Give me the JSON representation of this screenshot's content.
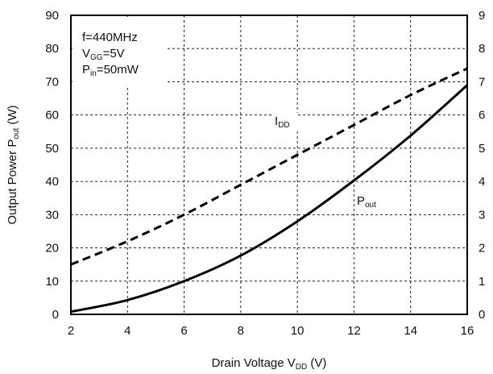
{
  "chart_data": {
    "type": "line",
    "x_axis": {
      "label_main": "Drain Voltage V",
      "label_sub": "DD",
      "label_unit": " (V)",
      "range": [
        2,
        16
      ],
      "ticks": [
        "2",
        "4",
        "6",
        "8",
        "10",
        "12",
        "14",
        "16"
      ]
    },
    "y_axis_left": {
      "label_main": "Output Power P",
      "label_sub": "out",
      "label_unit": " (W)",
      "range": [
        0,
        90
      ],
      "ticks": [
        "0",
        "10",
        "20",
        "30",
        "40",
        "50",
        "60",
        "70",
        "80",
        "90"
      ]
    },
    "y_axis_right": {
      "range": [
        0,
        9
      ],
      "ticks": [
        "0",
        "1",
        "2",
        "3",
        "4",
        "5",
        "6",
        "7",
        "8",
        "9"
      ]
    },
    "conditions": [
      {
        "main": "f=440MHz",
        "sub": "",
        "rest": ""
      },
      {
        "main": "V",
        "sub": "GG",
        "rest": "=5V"
      },
      {
        "main": "P",
        "sub": "in",
        "rest": "=50mW"
      }
    ],
    "series": [
      {
        "name_main": "P",
        "name_sub": "out",
        "axis": "left",
        "style": "solid",
        "x": [
          2,
          4,
          6,
          8,
          10,
          12,
          14,
          16
        ],
        "y": [
          0.8,
          4.3,
          10,
          17.7,
          28,
          40.3,
          53.8,
          69
        ]
      },
      {
        "name_main": "I",
        "name_sub": "DD",
        "axis": "right",
        "style": "dashed",
        "x": [
          2,
          4,
          6,
          8,
          10,
          12,
          14,
          16
        ],
        "y": [
          1.5,
          2.2,
          3.0,
          3.9,
          4.8,
          5.7,
          6.6,
          7.4
        ]
      }
    ],
    "grid": true,
    "legend": "none"
  }
}
